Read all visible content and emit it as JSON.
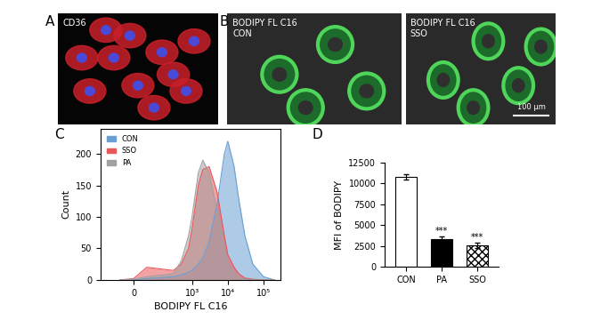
{
  "panel_labels": [
    "A",
    "B",
    "C",
    "D"
  ],
  "images": [
    {
      "panel": "A",
      "texts": [
        "CD36"
      ]
    },
    {
      "panel": "B",
      "texts": [
        "BODIPY FL C16",
        "CON"
      ]
    },
    {
      "panel": "B",
      "texts": [
        "BODIPY FL C16",
        "SSO"
      ],
      "scale_bar": "100 μm"
    }
  ],
  "chart_data": [
    {
      "panel": "C",
      "type": "area",
      "xlabel": "BODIPY FL C16",
      "ylabel": "Count",
      "log": "x",
      "legend": "upper left",
      "x": [
        -100,
        0,
        100,
        300,
        500,
        800,
        1000,
        1500,
        2000,
        3000,
        5000,
        8000,
        10000,
        15000,
        20000,
        30000,
        50000,
        100000,
        200000
      ],
      "series": [
        {
          "name": "CON",
          "color": "#6a9fd4",
          "values": [
            0,
            0,
            2,
            5,
            8,
            12,
            15,
            25,
            35,
            60,
            120,
            200,
            220,
            180,
            130,
            70,
            25,
            5,
            0
          ]
        },
        {
          "name": "SSO",
          "color": "#e8575a",
          "values": [
            0,
            2,
            20,
            15,
            25,
            50,
            80,
            150,
            175,
            180,
            140,
            70,
            40,
            20,
            10,
            3,
            1,
            0,
            0
          ]
        },
        {
          "name": "PA",
          "color": "#a0a0a0",
          "values": [
            0,
            1,
            5,
            10,
            30,
            70,
            100,
            170,
            190,
            170,
            110,
            50,
            25,
            10,
            4,
            1,
            0,
            0,
            0
          ]
        }
      ],
      "xlim": [
        -250,
        300000
      ],
      "xticks": [
        {
          "value": 0,
          "label": "0"
        },
        {
          "value": 1000,
          "label": "10³"
        },
        {
          "value": 10000,
          "label": "10⁴"
        },
        {
          "value": 100000,
          "label": "10⁵"
        }
      ],
      "ylim": [
        0,
        240
      ],
      "yticks": [
        0,
        50,
        100,
        150,
        200
      ]
    },
    {
      "panel": "D",
      "type": "bar",
      "ylabel": "MFI of BODIPY",
      "categories": [
        "CON",
        "PA",
        "SSO"
      ],
      "values": [
        10800,
        3300,
        2600
      ],
      "errors": [
        300,
        300,
        300
      ],
      "colors": [
        "#ffffff",
        "#000000",
        "#ffffff"
      ],
      "annotations": [
        {
          "category": "PA",
          "text": "***"
        },
        {
          "category": "SSO",
          "text": "***"
        }
      ],
      "ylim": [
        0,
        12500
      ],
      "yticks": [
        0,
        2500,
        5000,
        7500,
        10000,
        12500
      ]
    }
  ]
}
